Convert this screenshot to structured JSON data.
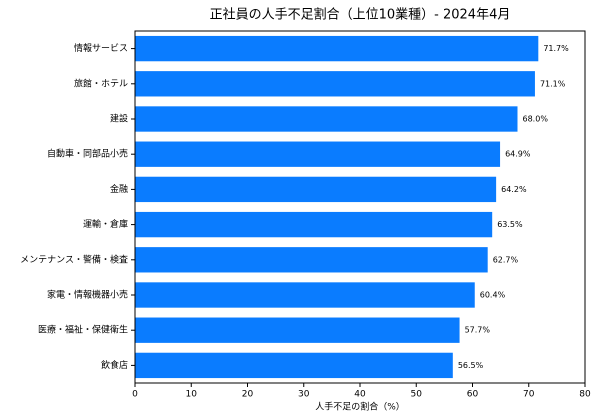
{
  "chart_data": {
    "type": "barh",
    "title": "正社員の人手不足割合（上位10業種）- 2024年4月",
    "x_label": "人手不足の割合（%）",
    "categories": [
      "情報サービス",
      "旅館・ホテル",
      "建設",
      "自動車・同部品小売",
      "金融",
      "運輸・倉庫",
      "メンテナンス・警備・検査",
      "家電・情報機器小売",
      "医療・福祉・保健衛生",
      "飲食店"
    ],
    "values": [
      71.7,
      71.1,
      68.0,
      64.9,
      64.2,
      63.5,
      62.7,
      60.4,
      57.7,
      56.5
    ],
    "value_labels": [
      "71.7%",
      "71.1%",
      "68.0%",
      "64.9%",
      "64.2%",
      "63.5%",
      "62.7%",
      "60.4%",
      "57.7%",
      "56.5%"
    ],
    "color": "#0a7cff",
    "xlim": [
      0,
      80
    ],
    "xticks": [
      0,
      10,
      20,
      30,
      40,
      50,
      60,
      70,
      80
    ],
    "grid": false
  }
}
